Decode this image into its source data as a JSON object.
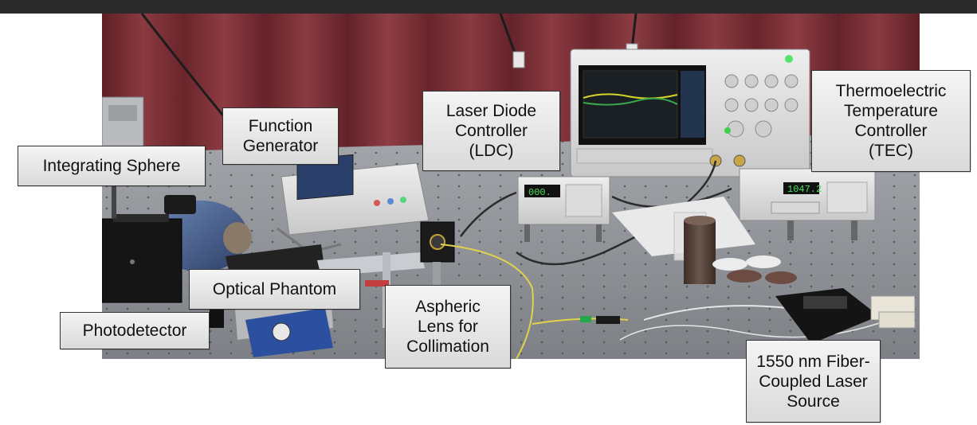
{
  "figure": {
    "labels": {
      "function_generator": [
        "Function",
        "Generator"
      ],
      "laser_diode_controller": [
        "Laser Diode",
        "Controller",
        "(LDC)"
      ],
      "tec": [
        "Thermoelectric",
        "Temperature",
        "Controller",
        "(TEC)"
      ],
      "integrating_sphere": [
        "Integrating Sphere"
      ],
      "optical_phantom": [
        "Optical Phantom"
      ],
      "photodetector": [
        "Photodetector"
      ],
      "aspheric_lens": [
        "Aspheric",
        "Lens for",
        "Collimation"
      ],
      "laser_source": [
        "1550 nm Fiber-",
        "Coupled Laser",
        "Source"
      ]
    },
    "displays": {
      "ldc_readout": "000.",
      "tec_readout": "1047.2"
    },
    "colors": {
      "curtain": "#7a2e33",
      "table": "#8e9096",
      "label_bg": "#e6e6e6",
      "label_border": "#333333"
    }
  }
}
